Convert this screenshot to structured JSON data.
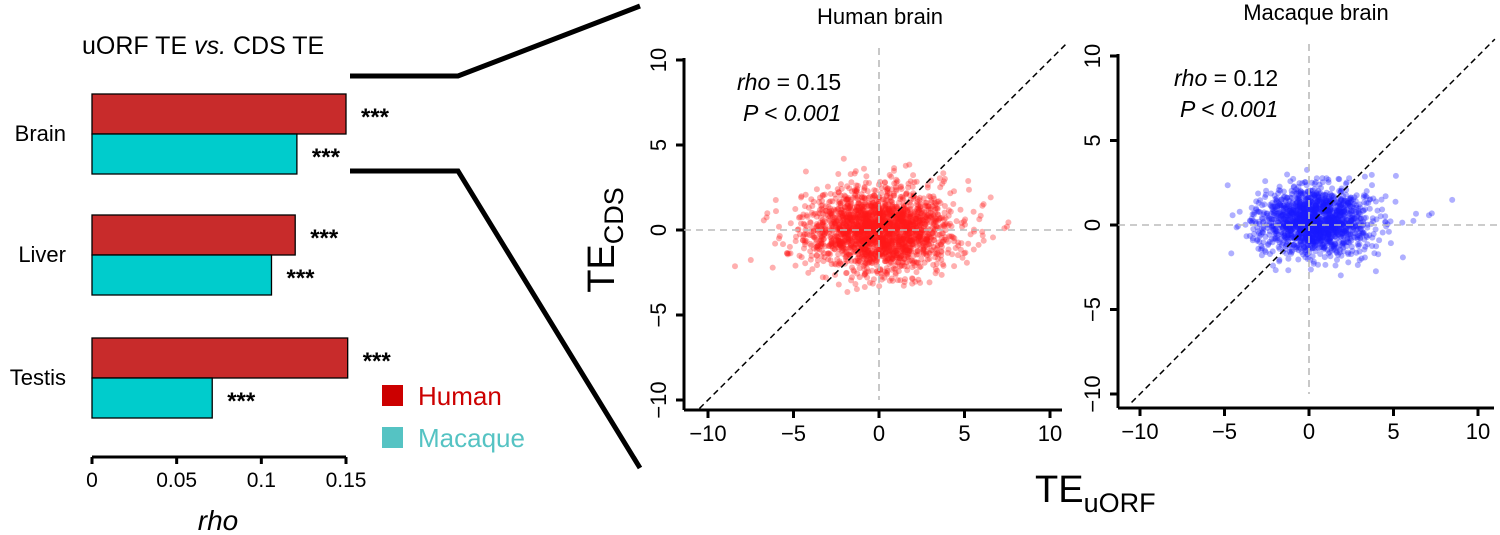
{
  "colors": {
    "human": "#c82b2b",
    "macaque": "#00cccc",
    "human_legend": "#cc0000",
    "macaque_legend": "#55c3c3",
    "human_points": "#ff1a1a",
    "macaque_points": "#1a1aff"
  },
  "chart_data": [
    {
      "type": "bar",
      "orientation": "horizontal",
      "title": "uORF TE vs. CDS TE",
      "title_main": "uORF TE ",
      "title_italic": "vs.",
      "title_tail": " CDS TE",
      "xlabel": "rho",
      "categories": [
        "Brain",
        "Liver",
        "Testis"
      ],
      "series": [
        {
          "name": "Human",
          "values": [
            0.15,
            0.12,
            0.151
          ]
        },
        {
          "name": "Macaque",
          "values": [
            0.121,
            0.106,
            0.071
          ]
        }
      ],
      "significance": [
        "***",
        "***",
        "***",
        "***",
        "***",
        "***"
      ],
      "xlim": [
        0,
        0.15
      ],
      "xticks": [
        "0",
        "0.05",
        "0.1",
        "0.15"
      ],
      "legend_position": "bottom-right"
    },
    {
      "type": "scatter",
      "title": "Human brain",
      "ylabel_main": "TE",
      "ylabel_sub": "CDS",
      "xlim": [
        -10,
        10
      ],
      "ylim": [
        -10,
        10
      ],
      "ticks": [
        "−10",
        "−5",
        "0",
        "5",
        "10"
      ],
      "rho_label": "rho",
      "rho_value": " = 0.15",
      "p_text": "P < 0.001",
      "grid": false,
      "reference_lines": "dashed y = x diagonal; dashed grey lines at x = 0 and y = 0",
      "point_cloud": {
        "x_mean": 0,
        "x_sd": 2.1,
        "y_mean": 0,
        "y_sd": 1.2,
        "n_approx": 2200
      }
    },
    {
      "type": "scatter",
      "title": "Macaque brain",
      "xlabel_main": "TE",
      "xlabel_sub": "uORF",
      "xlim": [
        -10,
        10
      ],
      "ylim": [
        -10,
        10
      ],
      "ticks": [
        "−10",
        "−5",
        "0",
        "5",
        "10"
      ],
      "rho_label": "rho",
      "rho_value": " = 0.12",
      "p_text": "P < 0.001",
      "grid": false,
      "reference_lines": "dashed y = x diagonal; dashed grey lines at x = 0 and y = 0",
      "point_cloud": {
        "x_mean": 0.3,
        "x_sd": 1.6,
        "y_mean": 0.2,
        "y_sd": 1.0,
        "n_approx": 1600
      }
    }
  ]
}
